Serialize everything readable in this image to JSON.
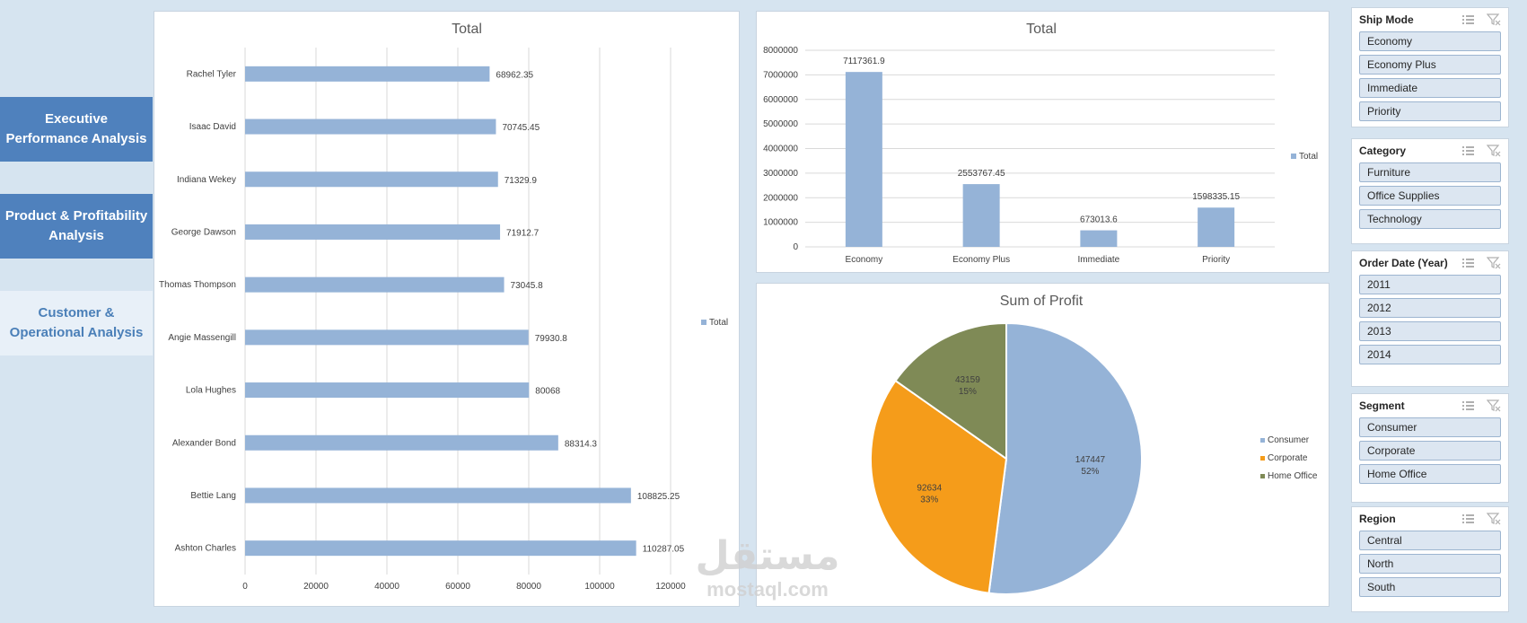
{
  "nav": [
    {
      "label": "Executive Performance Analysis",
      "style": "dark"
    },
    {
      "label": "Product & Profitability Analysis",
      "style": "dark"
    },
    {
      "label": "Customer & Operational Analysis",
      "style": "light"
    }
  ],
  "colors": {
    "bar": "#95b3d7",
    "consumer": "#95b3d7",
    "corporate": "#f59c1a",
    "home_office": "#7f8a56"
  },
  "chart_data": [
    {
      "type": "bar",
      "orientation": "horizontal",
      "title": "Total",
      "categories": [
        "Rachel Tyler",
        "Isaac David",
        "Indiana Wekey",
        "George Dawson",
        "Thomas Thompson",
        "Angie Massengill",
        "Lola Hughes",
        "Alexander Bond",
        "Bettie Lang",
        "Ashton Charles"
      ],
      "values": [
        68962.35,
        70745.45,
        71329.9,
        71912.7,
        73045.8,
        79930.8,
        80068,
        88314.3,
        108825.25,
        110287.05
      ],
      "value_labels": [
        "68962.35",
        "70745.45",
        "71329.9",
        "71912.7",
        "73045.8",
        "79930.8",
        "80068",
        "88314.3",
        "108825.25",
        "110287.05"
      ],
      "xlim": [
        0,
        120000
      ],
      "xticks": [
        0,
        20000,
        40000,
        60000,
        80000,
        100000,
        120000
      ],
      "legend": [
        "Total"
      ],
      "legend_position": "right",
      "grid": true
    },
    {
      "type": "bar",
      "title": "Total",
      "categories": [
        "Economy",
        "Economy Plus",
        "Immediate",
        "Priority"
      ],
      "values": [
        7117361.9,
        2553767.45,
        673013.6,
        1598335.15
      ],
      "value_labels": [
        "7117361.9",
        "2553767.45",
        "673013.6",
        "1598335.15"
      ],
      "ylim": [
        0,
        8000000
      ],
      "yticks": [
        0,
        1000000,
        2000000,
        3000000,
        4000000,
        5000000,
        6000000,
        7000000,
        8000000
      ],
      "legend": [
        "Total"
      ],
      "legend_position": "right",
      "grid": true
    },
    {
      "type": "pie",
      "title": "Sum of Profit",
      "labels": [
        "Consumer",
        "Corporate",
        "Home Office"
      ],
      "values": [
        147447,
        92634,
        43159
      ],
      "percent_labels": [
        "52%",
        "33%",
        "15%"
      ],
      "legend_position": "right"
    }
  ],
  "slicers": [
    {
      "title": "Ship Mode",
      "items": [
        "Economy",
        "Economy Plus",
        "Immediate",
        "Priority"
      ]
    },
    {
      "title": "Category",
      "items": [
        "Furniture",
        "Office Supplies",
        "Technology"
      ]
    },
    {
      "title": "Order Date (Year)",
      "items": [
        "2011",
        "2012",
        "2013",
        "2014"
      ]
    },
    {
      "title": "Segment",
      "items": [
        "Consumer",
        "Corporate",
        "Home Office"
      ]
    },
    {
      "title": "Region",
      "items": [
        "Central",
        "North",
        "South"
      ]
    }
  ],
  "watermark": {
    "arabic": "مستقل",
    "latin": "mostaql.com"
  }
}
